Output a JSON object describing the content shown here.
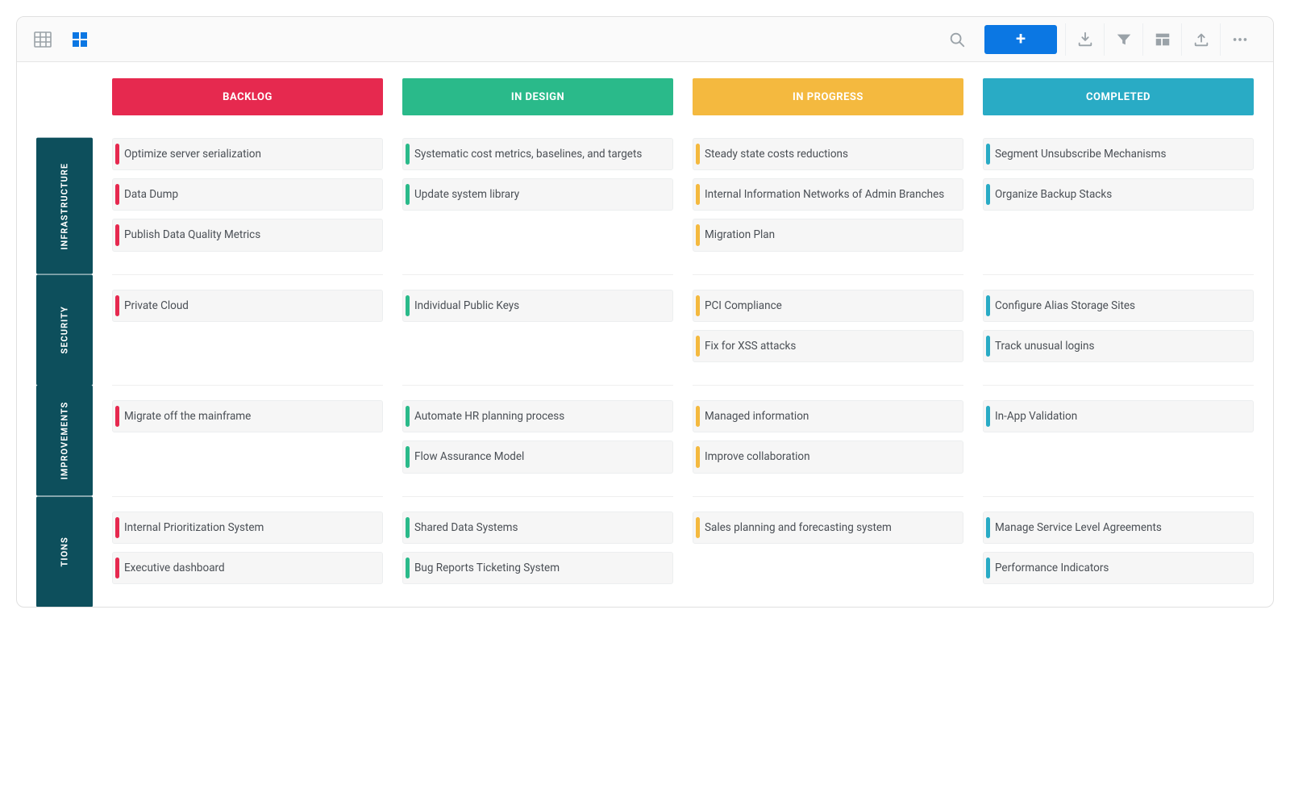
{
  "colors": {
    "backlog": "#e6294f",
    "in_design": "#2aba8a",
    "in_progress": "#f4b93f",
    "completed": "#29abc5",
    "swimlane_bg": "#0d4f5c",
    "add_button": "#0b77e3",
    "icon_inactive": "#9aa2a8",
    "icon_active": "#0b77e3"
  },
  "toolbar": {
    "add_label": "+"
  },
  "columns": [
    {
      "id": "backlog",
      "label": "BACKLOG",
      "color": "#e6294f"
    },
    {
      "id": "in_design",
      "label": "IN DESIGN",
      "color": "#2aba8a"
    },
    {
      "id": "in_progress",
      "label": "IN PROGRESS",
      "color": "#f4b93f"
    },
    {
      "id": "completed",
      "label": "COMPLETED",
      "color": "#29abc5"
    }
  ],
  "swimlanes": [
    {
      "id": "infrastructure",
      "label": "INFRASTRUCTURE",
      "cells": {
        "backlog": [
          "Optimize server serialization",
          "Data Dump",
          "Publish Data Quality Metrics"
        ],
        "in_design": [
          "Systematic cost metrics, baselines, and targets",
          "Update system library"
        ],
        "in_progress": [
          "Steady state costs reductions",
          "Internal Information Networks of Admin Branches",
          "Migration Plan"
        ],
        "completed": [
          "Segment Unsubscribe Mechanisms",
          "Organize Backup Stacks"
        ]
      }
    },
    {
      "id": "security",
      "label": "SECURITY",
      "cells": {
        "backlog": [
          "Private Cloud"
        ],
        "in_design": [
          "Individual Public Keys"
        ],
        "in_progress": [
          "PCI Compliance",
          "Fix for XSS attacks"
        ],
        "completed": [
          "Configure Alias Storage Sites",
          "Track unusual logins"
        ]
      }
    },
    {
      "id": "improvements",
      "label": "IMPROVEMENTS",
      "cells": {
        "backlog": [
          "Migrate off the mainframe"
        ],
        "in_design": [
          "Automate HR planning process",
          "Flow Assurance Model"
        ],
        "in_progress": [
          "Managed information",
          "Improve collaboration"
        ],
        "completed": [
          "In-App Validation"
        ]
      }
    },
    {
      "id": "tions",
      "label": "TIONS",
      "cells": {
        "backlog": [
          "Internal Prioritization System",
          "Executive dashboard"
        ],
        "in_design": [
          "Shared Data Systems",
          "Bug Reports Ticketing System"
        ],
        "in_progress": [
          "Sales planning and forecasting system"
        ],
        "completed": [
          "Manage Service Level Agreements",
          "Performance Indicators"
        ]
      }
    }
  ]
}
